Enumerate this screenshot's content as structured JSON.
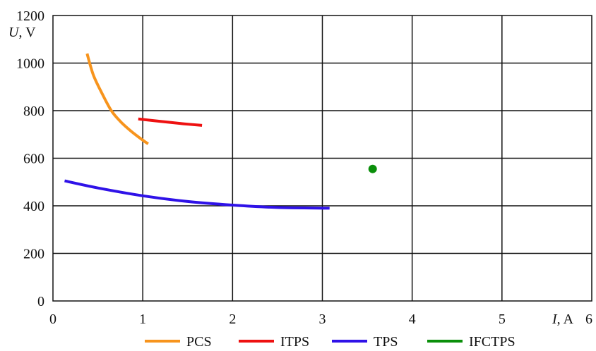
{
  "chart_data": {
    "type": "line",
    "xlabel": {
      "var": "I",
      "unit": ", A"
    },
    "ylabel": {
      "var": "U",
      "unit": ", V"
    },
    "xlim": [
      0,
      6
    ],
    "ylim": [
      0,
      1200
    ],
    "xticks": [
      0,
      1,
      2,
      3,
      4,
      5,
      6
    ],
    "yticks": [
      0,
      200,
      400,
      600,
      800,
      1000,
      1200
    ],
    "x_tick_labels": [
      "0",
      "1",
      "2",
      "3",
      "4",
      "5",
      "6"
    ],
    "y_tick_labels": [
      "0",
      "200",
      "400",
      "600",
      "800",
      "1000",
      "1200"
    ],
    "grid": true,
    "legend_position": "bottom",
    "series": [
      {
        "name": "PCS",
        "color": "#f7941d",
        "kind": "line",
        "x": [
          0.38,
          0.45,
          0.55,
          0.65,
          0.75,
          0.85,
          0.95,
          1.06
        ],
        "y": [
          1040,
          950,
          870,
          800,
          755,
          720,
          690,
          660
        ]
      },
      {
        "name": "ITPS",
        "color": "#ee1111",
        "kind": "line",
        "x": [
          0.95,
          1.2,
          1.45,
          1.66
        ],
        "y": [
          765,
          755,
          745,
          738
        ]
      },
      {
        "name": "TPS",
        "color": "#2f12e8",
        "kind": "line",
        "x": [
          0.13,
          0.5,
          1.0,
          1.5,
          2.0,
          2.5,
          3.08
        ],
        "y": [
          505,
          475,
          442,
          418,
          403,
          393,
          390
        ]
      },
      {
        "name": "IFCTPS",
        "color": "#0a8f0a",
        "kind": "point",
        "x": [
          3.56
        ],
        "y": [
          555
        ]
      }
    ]
  }
}
